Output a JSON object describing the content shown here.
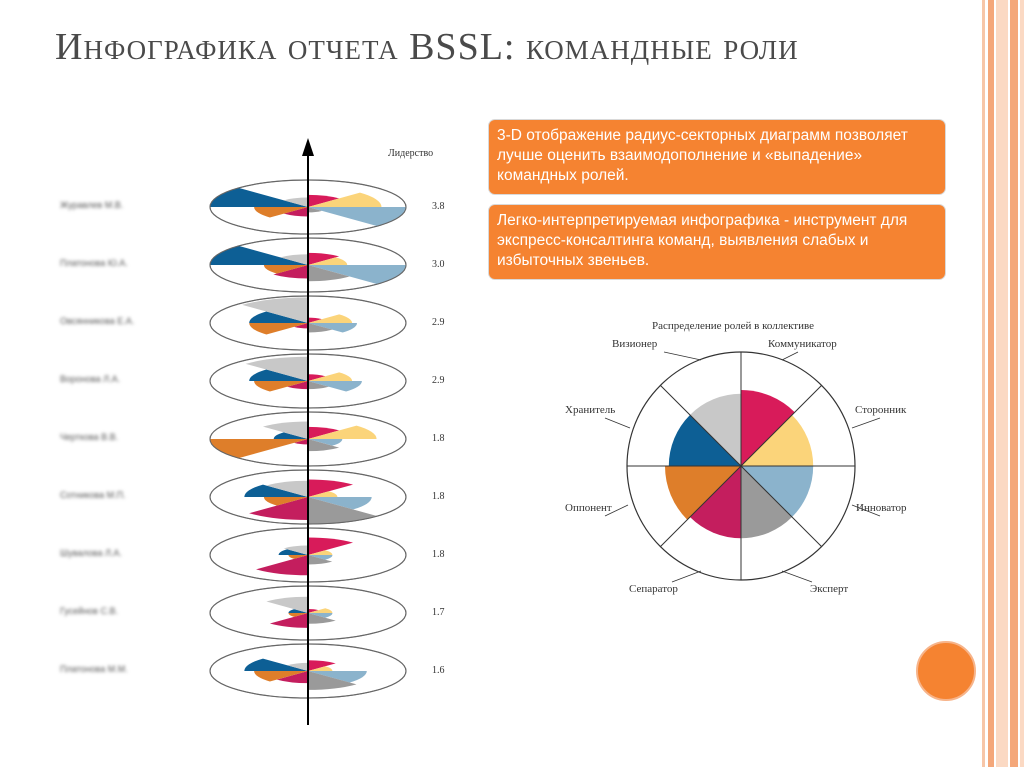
{
  "title": "Инфографика отчета BSSL: командные роли",
  "callouts": [
    "3-D отображение радиус-секторных диаграмм позволяет  лучше оценить взаимодополнение  и «выпадение» командных ролей.",
    "Легко-интерпретируемая инфографика  - инструмент для экспресс-консалтинга команд, выявления слабых и избыточных звеньев."
  ],
  "colors": {
    "accent": "#f58331",
    "roles": {
      "visionary": "#d81b5a",
      "communicator": "#fbd47a",
      "supporter": "#8bb3cc",
      "innovator": "#9a9a9a",
      "expert": "#c41e5e",
      "separator": "#de7e2a",
      "opponent": "#0d5f95",
      "keeper": "#c8c8c8"
    }
  },
  "leadership_label": "Лидерство",
  "wheel_title": "Распределение ролей в коллективе",
  "roles": [
    "Визионер",
    "Коммуникатор",
    "Сторонник",
    "Инноватор",
    "Эксперт",
    "Сепаратор",
    "Оппонент",
    "Хранитель"
  ],
  "chart_data": [
    {
      "type": "radial-sector-stack",
      "value_label": "Лидерство",
      "role_order": [
        "Визионер",
        "Коммуникатор",
        "Сторонник",
        "Инноватор",
        "Эксперт",
        "Сепаратор",
        "Оппонент",
        "Хранитель"
      ],
      "members": [
        {
          "name": "Журавлев М.В.",
          "leadership": "3.8",
          "values": [
            0.45,
            0.75,
            1.0,
            0.2,
            0.35,
            0.55,
            1.0,
            0.35
          ]
        },
        {
          "name": "Платонова Ю.А.",
          "leadership": "3.0",
          "values": [
            0.45,
            0.4,
            1.0,
            0.6,
            0.5,
            0.45,
            1.0,
            0.4
          ]
        },
        {
          "name": "Овсянникова Е.А.",
          "leadership": "2.9",
          "values": [
            0.2,
            0.45,
            0.5,
            0.35,
            0.2,
            0.6,
            0.6,
            0.95
          ]
        },
        {
          "name": "Воронова Л.А.",
          "leadership": "2.9",
          "values": [
            0.25,
            0.45,
            0.55,
            0.3,
            0.3,
            0.55,
            0.6,
            0.9
          ]
        },
        {
          "name": "Черткова В.В.",
          "leadership": "1.8",
          "values": [
            0.45,
            0.7,
            0.35,
            0.45,
            0.2,
            1.0,
            0.35,
            0.65
          ]
        },
        {
          "name": "Сотникова М.П.",
          "leadership": "1.8",
          "values": [
            0.65,
            0.3,
            0.65,
            1.0,
            0.85,
            0.45,
            0.65,
            0.6
          ]
        },
        {
          "name": "Шувалова Л.А.",
          "leadership": "1.8",
          "values": [
            0.65,
            0.25,
            0.25,
            0.35,
            0.75,
            0.2,
            0.3,
            0.35
          ]
        },
        {
          "name": "Гусейнов С.В.",
          "leadership": "1.7",
          "values": [
            0.15,
            0.25,
            0.25,
            0.4,
            0.55,
            0.2,
            0.2,
            0.6
          ]
        },
        {
          "name": "Платонова М.М.",
          "leadership": "1.6",
          "values": [
            0.4,
            0.25,
            0.6,
            0.7,
            0.45,
            0.55,
            0.65,
            0.3
          ]
        }
      ]
    },
    {
      "type": "radial-sector",
      "title": "Распределение ролей в коллективе",
      "categories": [
        "Визионер",
        "Коммуникатор",
        "Сторонник",
        "Инноватор",
        "Эксперт",
        "Сепаратор",
        "Оппонент",
        "Хранитель"
      ],
      "values": [
        1.0,
        0.95,
        0.95,
        0.95,
        0.95,
        1.0,
        0.95,
        0.95
      ],
      "max": 1.0
    }
  ]
}
